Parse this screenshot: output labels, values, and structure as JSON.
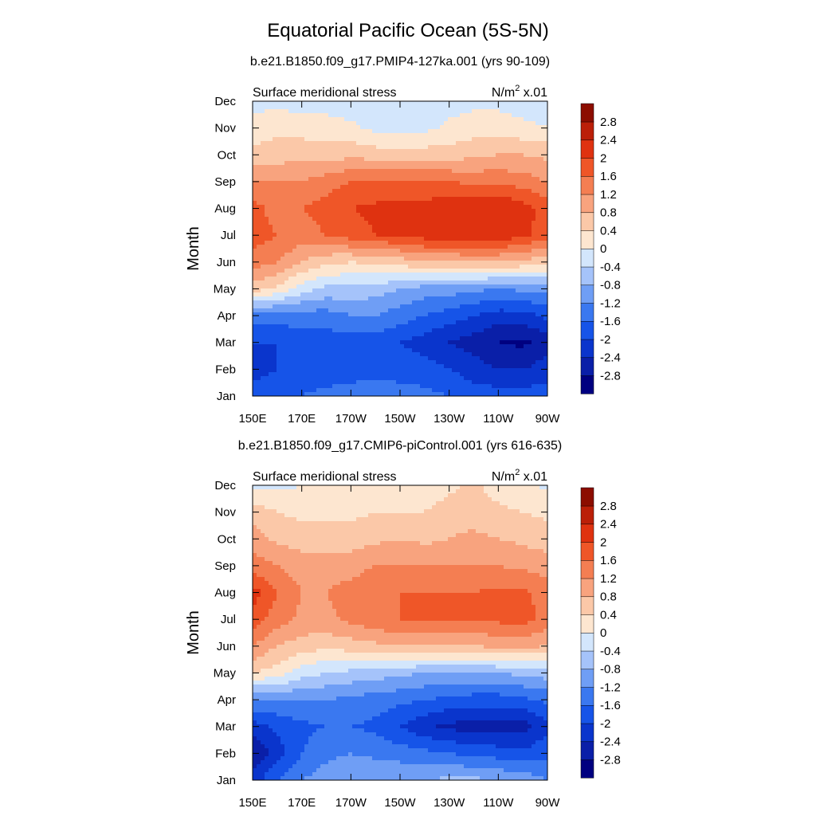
{
  "figure": {
    "title": "Equatorial Pacific Ocean (5S-5N)"
  },
  "colorbar": {
    "colors": [
      "#000080",
      "#0a1fa8",
      "#0a35cc",
      "#1654e8",
      "#3a78f0",
      "#6f9ef5",
      "#a5c3fa",
      "#d3e6fc",
      "#fde6d0",
      "#fbc8a8",
      "#f8a37e",
      "#f47e52",
      "#ef5628",
      "#df3210",
      "#bb1f08",
      "#8c0d00"
    ],
    "labels": [
      "2.8",
      "2.4",
      "2",
      "1.6",
      "1.2",
      "0.8",
      "0.4",
      "0",
      "-0.4",
      "-0.8",
      "-1.2",
      "-1.6",
      "-2",
      "-2.4",
      "-2.8"
    ]
  },
  "chart_data": [
    {
      "type": "heatmap",
      "title": "b.e21.B1850.f09_g17.PMIP4-127ka.001 (yrs 90-109)",
      "variable": "Surface meridional stress",
      "units_base": "N/m",
      "units_exp": "2",
      "units_scale": "x.01",
      "ylabel": "Month",
      "x_ticks": [
        "150E",
        "170E",
        "170W",
        "150W",
        "130W",
        "110W",
        "90W"
      ],
      "y_ticks": [
        "Jan",
        "Feb",
        "Mar",
        "Apr",
        "May",
        "Jun",
        "Jul",
        "Aug",
        "Sep",
        "Oct",
        "Nov",
        "Dec"
      ],
      "x": [
        150,
        160,
        170,
        180,
        190,
        200,
        210,
        220,
        230,
        240,
        250,
        260,
        270
      ],
      "y": [
        1,
        2,
        3,
        4,
        5,
        6,
        7,
        8,
        9,
        10,
        11,
        12
      ],
      "z": [
        [
          -1.8,
          -1.6,
          -1.6,
          -1.5,
          -1.4,
          -1.3,
          -1.4,
          -1.5,
          -1.6,
          -1.8,
          -1.8,
          -1.8,
          -1.8
        ],
        [
          -2.2,
          -2.0,
          -1.8,
          -1.8,
          -1.8,
          -1.8,
          -1.8,
          -1.8,
          -2.0,
          -2.2,
          -2.4,
          -2.4,
          -2.2
        ],
        [
          -2.0,
          -2.0,
          -1.8,
          -1.8,
          -1.8,
          -1.8,
          -2.0,
          -2.2,
          -2.4,
          -2.6,
          -2.8,
          -2.9,
          -2.6
        ],
        [
          -1.4,
          -1.4,
          -1.4,
          -1.4,
          -1.2,
          -1.2,
          -1.4,
          -1.6,
          -1.8,
          -2.0,
          -2.2,
          -2.2,
          -1.9
        ],
        [
          0.6,
          0.3,
          -0.2,
          -0.5,
          -0.5,
          -0.6,
          -0.8,
          -1.0,
          -1.0,
          -1.1,
          -1.2,
          -1.1,
          -1.0
        ],
        [
          1.4,
          1.2,
          0.8,
          0.5,
          0.4,
          0.5,
          0.6,
          0.8,
          0.8,
          0.8,
          0.8,
          0.7,
          0.5
        ],
        [
          1.8,
          1.6,
          1.4,
          1.6,
          1.8,
          2.0,
          2.0,
          2.2,
          2.2,
          2.3,
          2.3,
          2.1,
          1.8
        ],
        [
          1.8,
          1.4,
          1.6,
          1.8,
          2.0,
          2.1,
          2.2,
          2.2,
          2.3,
          2.4,
          2.4,
          2.2,
          1.8
        ],
        [
          1.2,
          1.2,
          1.2,
          1.4,
          1.6,
          1.6,
          1.6,
          1.6,
          1.6,
          1.5,
          1.5,
          1.4,
          1.2
        ],
        [
          0.5,
          0.6,
          0.7,
          0.6,
          0.7,
          0.6,
          0.6,
          0.6,
          0.6,
          0.7,
          0.8,
          0.8,
          0.7
        ],
        [
          0.2,
          0.3,
          0.2,
          0.2,
          0.1,
          -0.1,
          -0.2,
          -0.1,
          0.1,
          0.2,
          0.2,
          0.1,
          0.0
        ],
        [
          -0.2,
          -0.1,
          -0.2,
          -0.2,
          -0.3,
          -0.4,
          -0.4,
          -0.3,
          -0.2,
          -0.1,
          -0.1,
          -0.2,
          -0.2
        ]
      ]
    },
    {
      "type": "heatmap",
      "title": "b.e21.B1850.f09_g17.CMIP6-piControl.001 (yrs 616-635)",
      "variable": "Surface meridional stress",
      "units_base": "N/m",
      "units_exp": "2",
      "units_scale": "x.01",
      "ylabel": "Month",
      "x_ticks": [
        "150E",
        "170E",
        "170W",
        "150W",
        "130W",
        "110W",
        "90W"
      ],
      "y_ticks": [
        "Jan",
        "Feb",
        "Mar",
        "Apr",
        "May",
        "Jun",
        "Jul",
        "Aug",
        "Sep",
        "Oct",
        "Nov",
        "Dec"
      ],
      "x": [
        150,
        160,
        170,
        180,
        190,
        200,
        210,
        220,
        230,
        240,
        250,
        260,
        270
      ],
      "y": [
        1,
        2,
        3,
        4,
        5,
        6,
        7,
        8,
        9,
        10,
        11,
        12
      ],
      "z": [
        [
          -2.2,
          -1.6,
          -1.2,
          -1.0,
          -0.9,
          -0.8,
          -0.8,
          -0.8,
          -0.7,
          -0.7,
          -0.8,
          -0.9,
          -1.2
        ],
        [
          -2.8,
          -2.2,
          -1.6,
          -1.3,
          -1.2,
          -1.3,
          -1.4,
          -1.5,
          -1.6,
          -1.7,
          -1.8,
          -1.9,
          -1.7
        ],
        [
          -2.2,
          -1.9,
          -1.7,
          -1.6,
          -1.6,
          -1.7,
          -2.0,
          -2.3,
          -2.5,
          -2.6,
          -2.6,
          -2.6,
          -2.1
        ],
        [
          -1.2,
          -1.2,
          -1.2,
          -1.2,
          -1.3,
          -1.4,
          -1.5,
          -1.6,
          -1.7,
          -1.8,
          -1.8,
          -1.7,
          -1.5
        ],
        [
          0.4,
          0.2,
          -0.2,
          -0.4,
          -0.5,
          -0.6,
          -0.7,
          -0.8,
          -0.8,
          -0.8,
          -0.8,
          -0.7,
          -0.6
        ],
        [
          1.2,
          0.8,
          0.6,
          0.5,
          0.6,
          0.7,
          0.8,
          0.8,
          0.8,
          0.8,
          0.9,
          0.9,
          0.8
        ],
        [
          1.8,
          1.4,
          1.1,
          1.1,
          1.3,
          1.5,
          1.6,
          1.6,
          1.6,
          1.6,
          1.7,
          1.8,
          1.4
        ],
        [
          2.2,
          1.6,
          1.2,
          1.2,
          1.4,
          1.6,
          1.6,
          1.6,
          1.6,
          1.6,
          1.7,
          1.7,
          1.4
        ],
        [
          1.4,
          1.2,
          1.0,
          1.0,
          1.0,
          1.2,
          1.2,
          1.2,
          1.2,
          1.2,
          1.2,
          1.1,
          1.0
        ],
        [
          1.0,
          0.7,
          0.6,
          0.6,
          0.6,
          0.7,
          0.8,
          0.7,
          0.8,
          0.9,
          0.8,
          0.7,
          0.6
        ],
        [
          0.6,
          0.4,
          0.3,
          0.3,
          0.3,
          0.4,
          0.4,
          0.4,
          0.6,
          0.6,
          0.5,
          0.4,
          0.3
        ],
        [
          -0.1,
          -0.1,
          0.0,
          0.1,
          0.1,
          0.2,
          0.2,
          0.1,
          0.3,
          0.5,
          0.2,
          0.1,
          -0.1
        ]
      ]
    }
  ]
}
